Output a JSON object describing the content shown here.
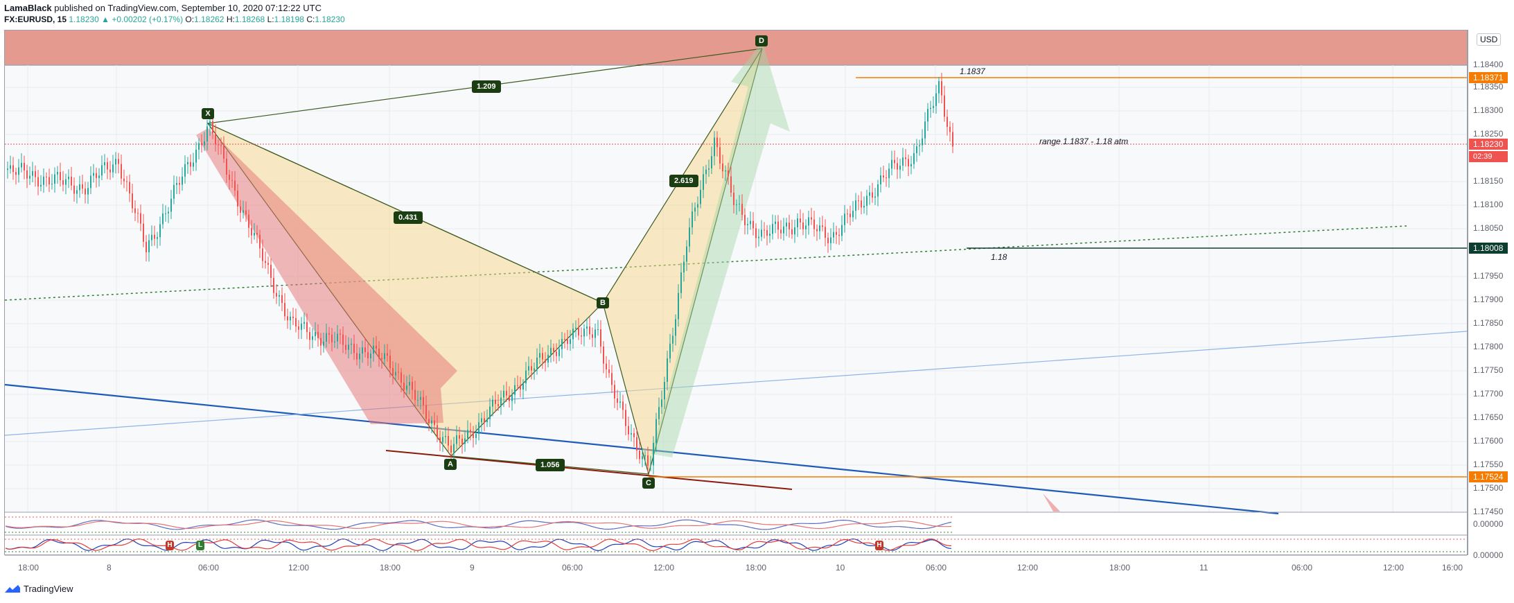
{
  "header": {
    "author": "LamaBlack",
    "published": "published on TradingView.com, September 10, 2020 07:12:22 UTC",
    "symbol": "FX:EURUSD, 15",
    "last": "1.18230",
    "change": "▲ +0.00202 (+0.17%)",
    "o_label": "O:",
    "o": "1.18262",
    "h_label": "H:",
    "h": "1.18268",
    "l_label": "L:",
    "l": "1.18198",
    "c_label": "C:",
    "c": "1.18230"
  },
  "price_axis": {
    "currency": "USD",
    "ticks": [
      "1.18400",
      "1.18350",
      "1.18300",
      "1.18250",
      "1.18150",
      "1.18100",
      "1.18050",
      "1.17950",
      "1.17900",
      "1.17850",
      "1.17800",
      "1.17750",
      "1.17700",
      "1.17650",
      "1.17600",
      "1.17550",
      "1.17500",
      "1.17450"
    ],
    "tags": {
      "level_high": "1.18371",
      "current": "1.18230",
      "countdown": "02:39",
      "level_mid": "1.18008",
      "level_low": "1.17524"
    },
    "osc1": "0.00000",
    "osc2": "0.00000"
  },
  "time_axis": [
    "18:00",
    "8",
    "06:00",
    "12:00",
    "18:00",
    "9",
    "06:00",
    "12:00",
    "18:00",
    "10",
    "06:00",
    "12:00",
    "18:00",
    "11",
    "06:00",
    "12:00",
    "16:00"
  ],
  "pattern": {
    "points": [
      "X",
      "A",
      "B",
      "C",
      "D"
    ],
    "ratios": {
      "xa_xd": "1.209",
      "xb": "0.431",
      "ac": "1.056",
      "bd": "2.619"
    }
  },
  "annotations": {
    "level_high": "1.1837",
    "range": "range 1.1837 - 1.18 atm",
    "level_mid": "1.18"
  },
  "indicator_markers": {
    "h1": "H",
    "l1": "L",
    "h2": "H"
  },
  "footer": {
    "brand": "TradingView"
  },
  "colors": {
    "bull": "#26a69a",
    "bear": "#ef5350",
    "pattern_fill": "#f5d58a",
    "supply_zone": "#d95f4a",
    "orange_level": "#f57c00",
    "green_level": "#0d3d2f"
  }
}
